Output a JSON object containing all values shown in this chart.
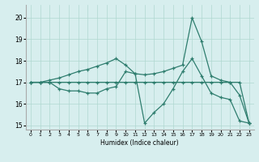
{
  "xlabel": "Humidex (Indice chaleur)",
  "xlim": [
    -0.5,
    23.5
  ],
  "ylim": [
    14.8,
    20.6
  ],
  "yticks": [
    15,
    16,
    17,
    18,
    19,
    20
  ],
  "xticks": [
    0,
    1,
    2,
    3,
    4,
    5,
    6,
    7,
    8,
    9,
    10,
    11,
    12,
    13,
    14,
    15,
    16,
    17,
    18,
    19,
    20,
    21,
    22,
    23
  ],
  "bg_color": "#d7eeee",
  "line_color": "#2e7d6e",
  "line1_x": [
    0,
    1,
    2,
    3,
    4,
    5,
    6,
    7,
    8,
    9,
    10,
    11,
    12,
    13,
    14,
    15,
    16,
    17,
    18,
    19,
    20,
    21,
    22,
    23
  ],
  "line1_y": [
    17.0,
    17.0,
    17.0,
    17.0,
    17.0,
    17.0,
    17.0,
    17.0,
    17.0,
    17.0,
    17.0,
    17.0,
    17.0,
    17.0,
    17.0,
    17.0,
    17.0,
    17.0,
    17.0,
    17.0,
    17.0,
    17.0,
    17.0,
    15.1
  ],
  "line2_x": [
    0,
    1,
    2,
    3,
    4,
    5,
    6,
    7,
    8,
    9,
    10,
    11,
    12,
    13,
    14,
    15,
    16,
    17,
    18,
    19,
    20,
    21,
    22,
    23
  ],
  "line2_y": [
    17.0,
    17.0,
    17.0,
    16.7,
    16.6,
    16.6,
    16.5,
    16.5,
    16.7,
    16.8,
    17.5,
    17.4,
    15.1,
    15.6,
    16.0,
    16.7,
    17.5,
    18.1,
    17.3,
    16.5,
    16.3,
    16.2,
    15.2,
    15.1
  ],
  "line3_x": [
    0,
    1,
    2,
    3,
    4,
    5,
    6,
    7,
    8,
    9,
    10,
    11,
    12,
    13,
    14,
    15,
    16,
    17,
    18,
    19,
    20,
    21,
    22,
    23
  ],
  "line3_y": [
    17.0,
    17.0,
    17.1,
    17.2,
    17.35,
    17.5,
    17.6,
    17.75,
    17.9,
    18.1,
    17.8,
    17.4,
    17.35,
    17.4,
    17.5,
    17.65,
    17.8,
    20.0,
    18.9,
    17.3,
    17.1,
    17.0,
    16.4,
    15.1
  ]
}
